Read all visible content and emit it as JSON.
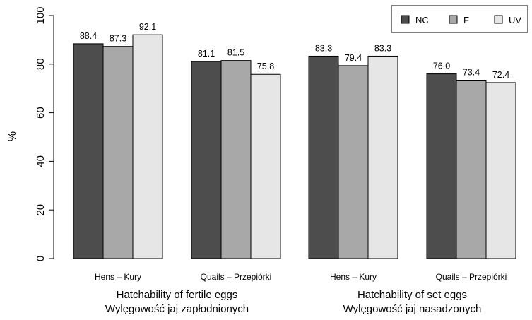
{
  "chart_data": {
    "type": "bar",
    "ylabel": "%",
    "ylim": [
      0,
      100
    ],
    "yticks": [
      0,
      20,
      40,
      60,
      80,
      100
    ],
    "legend_position": "top-right",
    "grid": false,
    "series": [
      {
        "name": "NC",
        "color": "#4d4d4d"
      },
      {
        "name": "F",
        "color": "#a8a8a8"
      },
      {
        "name": "UV",
        "color": "#e6e6e6"
      }
    ],
    "groups": [
      {
        "label_lines": [
          "Hatchability of fertile eggs",
          "Wylęgowość jaj zapłodnionych"
        ],
        "categories": [
          {
            "label": "Hens – Kury",
            "values": [
              88.4,
              87.3,
              92.1
            ],
            "labels": [
              "88.4",
              "87.3",
              "92.1"
            ]
          },
          {
            "label": "Quails – Przepiórki",
            "values": [
              81.1,
              81.5,
              75.8
            ],
            "labels": [
              "81.1",
              "81.5",
              "75.8"
            ]
          }
        ]
      },
      {
        "label_lines": [
          "Hatchability of set eggs",
          "Wylęgowość jaj nasadzonych"
        ],
        "categories": [
          {
            "label": "Hens – Kury",
            "values": [
              83.3,
              79.4,
              83.3
            ],
            "labels": [
              "83.3",
              "79.4",
              "83.3"
            ]
          },
          {
            "label": "Quails – Przepiórki",
            "values": [
              76.0,
              73.4,
              72.4
            ],
            "labels": [
              "76.0",
              "73.4",
              "72.4"
            ]
          }
        ]
      }
    ]
  }
}
